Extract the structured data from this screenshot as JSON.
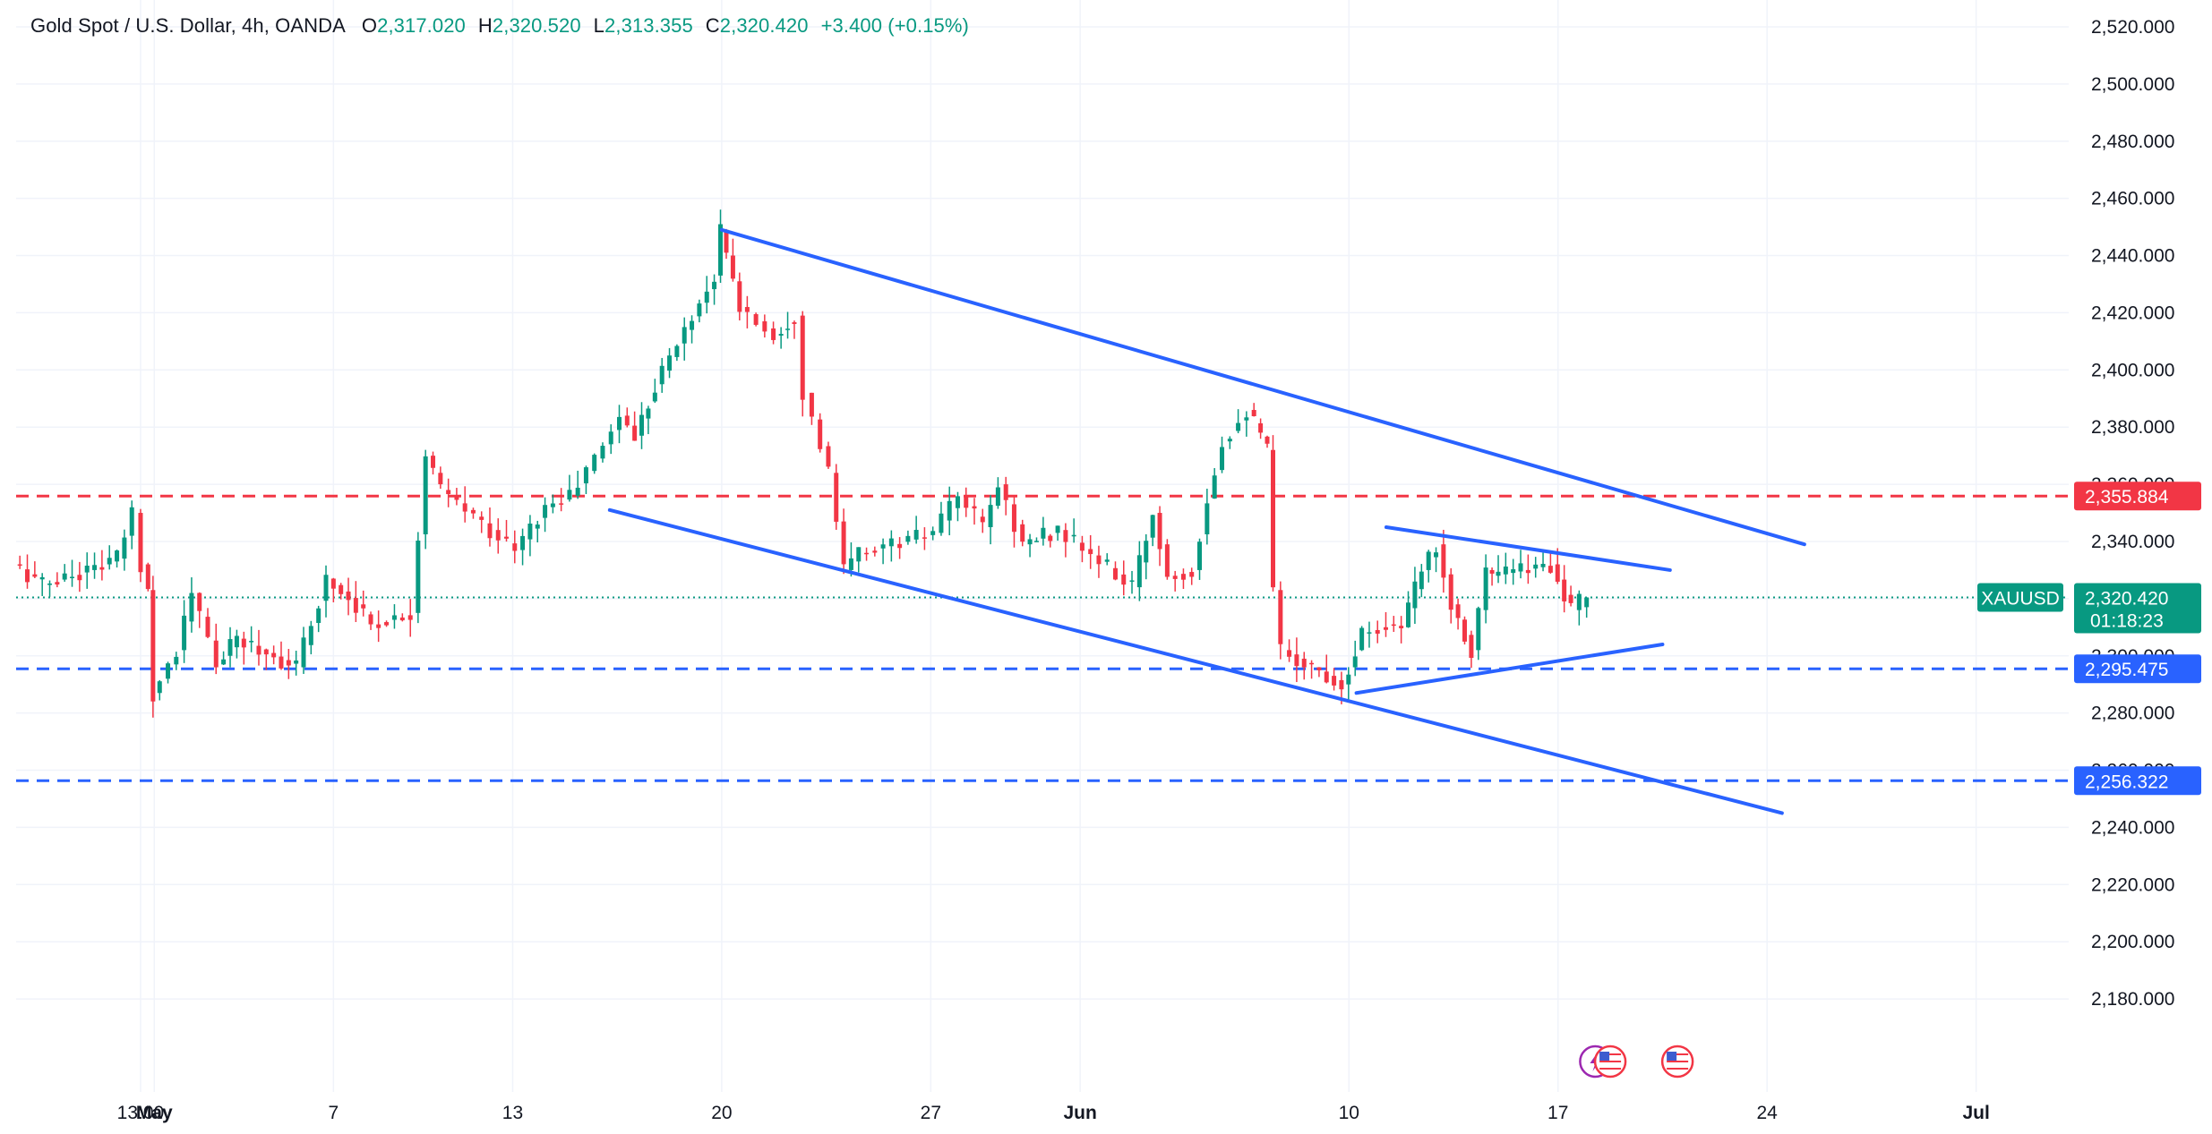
{
  "header": {
    "instrument": "Gold Spot / U.S. Dollar, 4h, OANDA",
    "open_label": "O",
    "open": "2,317.020",
    "high_label": "H",
    "high": "2,320.520",
    "low_label": "L",
    "low": "2,313.355",
    "close_label": "C",
    "close": "2,320.420",
    "change": "+3.400 (+0.15%)"
  },
  "colors": {
    "up": "#089981",
    "down": "#f23645",
    "trendline": "#2962ff",
    "resistance": "#f23645",
    "support": "#2962ff",
    "grid": "#f0f3fa",
    "text": "#131722"
  },
  "chart_data": {
    "type": "candlestick",
    "timeframe": "4h",
    "ylim": [
      2165,
      2525
    ],
    "y_ticks": [
      2180,
      2200,
      2220,
      2240,
      2260,
      2280,
      2300,
      2320,
      2340,
      2360,
      2380,
      2400,
      2420,
      2440,
      2460,
      2480,
      2500,
      2520
    ],
    "y_tick_labels": [
      "2,180.000",
      "2,200.000",
      "2,220.000",
      "2,240.000",
      "2,260.000",
      "2,280.000",
      "2,300.000",
      "2,320.000",
      "2,340.000",
      "2,360.000",
      "2,380.000",
      "2,400.000",
      "2,420.000",
      "2,440.000",
      "2,460.000",
      "2,480.000",
      "2,500.000",
      "2,520.000"
    ],
    "x_date_range": [
      "2024-04-26T09:00",
      "2024-07-03T12:00"
    ],
    "x_ticks": [
      {
        "date": "2024-04-30T13:00",
        "label": "13:00",
        "bold": false
      },
      {
        "date": "2024-05-01T00:00",
        "label": "May",
        "bold": true
      },
      {
        "date": "2024-05-07T00:00",
        "label": "7",
        "bold": false
      },
      {
        "date": "2024-05-13T00:00",
        "label": "13",
        "bold": false
      },
      {
        "date": "2024-05-20T00:00",
        "label": "20",
        "bold": false
      },
      {
        "date": "2024-05-27T00:00",
        "label": "27",
        "bold": false
      },
      {
        "date": "2024-06-01T00:00",
        "label": "Jun",
        "bold": true
      },
      {
        "date": "2024-06-10T00:00",
        "label": "10",
        "bold": false
      },
      {
        "date": "2024-06-17T00:00",
        "label": "17",
        "bold": false
      },
      {
        "date": "2024-06-24T00:00",
        "label": "24",
        "bold": false
      },
      {
        "date": "2024-07-01T00:00",
        "label": "Jul",
        "bold": true
      }
    ],
    "last_price": 2320.42,
    "last_price_label": "2,320.420",
    "symbol_tag": "XAUUSD",
    "countdown": "01:18:23",
    "horizontal_levels": [
      {
        "price": 2355.884,
        "label": "2,355.884",
        "style": "dashed",
        "color": "#f23645"
      },
      {
        "price": 2295.475,
        "label": "2,295.475",
        "style": "dashed",
        "color": "#2962ff"
      },
      {
        "price": 2256.322,
        "label": "2,256.322",
        "style": "dashed",
        "color": "#2962ff"
      }
    ],
    "trendlines": [
      {
        "name": "channel-upper",
        "from": [
          "2024-05-20T00:00",
          2449
        ],
        "to": [
          "2024-06-25T06:00",
          2339
        ]
      },
      {
        "name": "channel-lower",
        "from": [
          "2024-05-16T06:00",
          2351
        ],
        "to": [
          "2024-06-24T12:00",
          2245
        ]
      },
      {
        "name": "triangle-upper",
        "from": [
          "2024-06-11T06:00",
          2345
        ],
        "to": [
          "2024-06-20T18:00",
          2330
        ]
      },
      {
        "name": "triangle-lower",
        "from": [
          "2024-06-10T06:00",
          2287
        ],
        "to": [
          "2024-06-20T12:00",
          2304
        ]
      }
    ],
    "event_markers": [
      {
        "date": "2024-06-18T06:00",
        "icon": "lightning-icon"
      },
      {
        "date": "2024-06-18T18:00",
        "icon": "us-flag-icon"
      },
      {
        "date": "2024-06-21T00:00",
        "icon": "us-flag-icon"
      }
    ],
    "candle_path": [
      [
        "2024-04-26T09:00",
        2332
      ],
      [
        "2024-04-27T09:00",
        2325
      ],
      [
        "2024-04-28T21:00",
        2330
      ],
      [
        "2024-04-29T21:00",
        2334
      ],
      [
        "2024-04-30T09:00",
        2350
      ],
      [
        "2024-04-30T17:00",
        2332
      ],
      [
        "2024-04-30T21:00",
        2323
      ],
      [
        "2024-05-01T01:00",
        2287
      ],
      [
        "2024-05-01T21:00",
        2302
      ],
      [
        "2024-05-02T09:00",
        2322
      ],
      [
        "2024-05-03T05:00",
        2297
      ],
      [
        "2024-05-03T21:00",
        2306
      ],
      [
        "2024-05-05T21:00",
        2296
      ],
      [
        "2024-05-06T21:00",
        2327
      ],
      [
        "2024-05-07T21:00",
        2318
      ],
      [
        "2024-05-08T09:00",
        2311
      ],
      [
        "2024-05-09T17:00",
        2315
      ],
      [
        "2024-05-10T05:00",
        2370
      ],
      [
        "2024-05-10T17:00",
        2358
      ],
      [
        "2024-05-13T05:00",
        2337
      ],
      [
        "2024-05-14T05:00",
        2352
      ],
      [
        "2024-05-15T01:00",
        2356
      ],
      [
        "2024-05-15T21:00",
        2369
      ],
      [
        "2024-05-16T17:00",
        2384
      ],
      [
        "2024-05-17T05:00",
        2377
      ],
      [
        "2024-05-17T21:00",
        2395
      ],
      [
        "2024-05-19T21:00",
        2433
      ],
      [
        "2024-05-20T01:00",
        2449
      ],
      [
        "2024-05-20T17:00",
        2422
      ],
      [
        "2024-05-21T21:00",
        2412
      ],
      [
        "2024-05-22T13:00",
        2419
      ],
      [
        "2024-05-22T21:00",
        2392
      ],
      [
        "2024-05-23T17:00",
        2364
      ],
      [
        "2024-05-24T05:00",
        2330
      ],
      [
        "2024-05-24T17:00",
        2336
      ],
      [
        "2024-05-27T05:00",
        2343
      ],
      [
        "2024-05-28T01:00",
        2356
      ],
      [
        "2024-05-28T21:00",
        2345
      ],
      [
        "2024-05-29T09:00",
        2360
      ],
      [
        "2024-05-30T05:00",
        2339
      ],
      [
        "2024-05-30T21:00",
        2342
      ],
      [
        "2024-05-31T09:00",
        2344
      ],
      [
        "2024-06-02T21:00",
        2324
      ],
      [
        "2024-06-03T13:00",
        2350
      ],
      [
        "2024-06-04T01:00",
        2328
      ],
      [
        "2024-06-04T21:00",
        2330
      ],
      [
        "2024-06-05T09:00",
        2355
      ],
      [
        "2024-06-05T21:00",
        2375
      ],
      [
        "2024-06-06T17:00",
        2386
      ],
      [
        "2024-06-07T09:00",
        2372
      ],
      [
        "2024-06-07T13:00",
        2323
      ],
      [
        "2024-06-07T21:00",
        2302
      ],
      [
        "2024-06-09T21:00",
        2290
      ],
      [
        "2024-06-10T13:00",
        2308
      ],
      [
        "2024-06-11T09:00",
        2311
      ],
      [
        "2024-06-11T21:00",
        2310
      ],
      [
        "2024-06-12T13:00",
        2330
      ],
      [
        "2024-06-13T01:00",
        2339
      ],
      [
        "2024-06-13T13:00",
        2318
      ],
      [
        "2024-06-14T05:00",
        2302
      ],
      [
        "2024-06-14T17:00",
        2330
      ],
      [
        "2024-06-14T21:00",
        2328
      ],
      [
        "2024-06-16T21:00",
        2332
      ],
      [
        "2024-06-17T13:00",
        2316
      ],
      [
        "2024-06-17T21:00",
        2319
      ],
      [
        "2024-06-18T01:00",
        2320.42
      ]
    ]
  }
}
